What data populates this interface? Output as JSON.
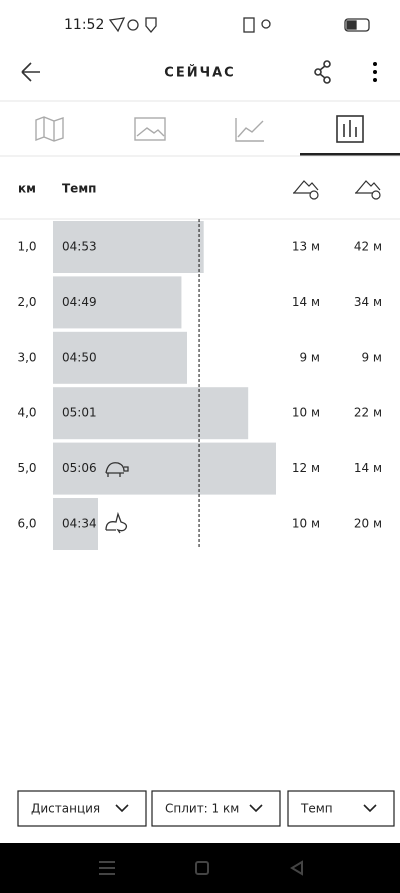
{
  "status_bar": {
    "time": "11:52"
  },
  "header": {
    "title": "СЕЙЧАС"
  },
  "table": {
    "columns": [
      "км",
      "Темп"
    ],
    "rows": [
      {
        "km": "1,0",
        "pace": "04:53",
        "ascent": "13 м",
        "descent": "42 м"
      },
      {
        "km": "2,0",
        "pace": "04:49",
        "ascent": "14 м",
        "descent": "34 м"
      },
      {
        "km": "3,0",
        "pace": "04:50",
        "ascent": "9 м",
        "descent": "9 м"
      },
      {
        "km": "4,0",
        "pace": "05:01",
        "ascent": "10 м",
        "descent": "22 м"
      },
      {
        "km": "5,0",
        "pace": "05:06",
        "ascent": "12 м",
        "descent": "14 м"
      },
      {
        "km": "6,0",
        "pace": "04:34",
        "ascent": "10 м",
        "descent": "20 м"
      }
    ]
  },
  "footer": {
    "buttons": [
      "Дистанция",
      "Сплит: 1 км",
      "Темп"
    ]
  }
}
